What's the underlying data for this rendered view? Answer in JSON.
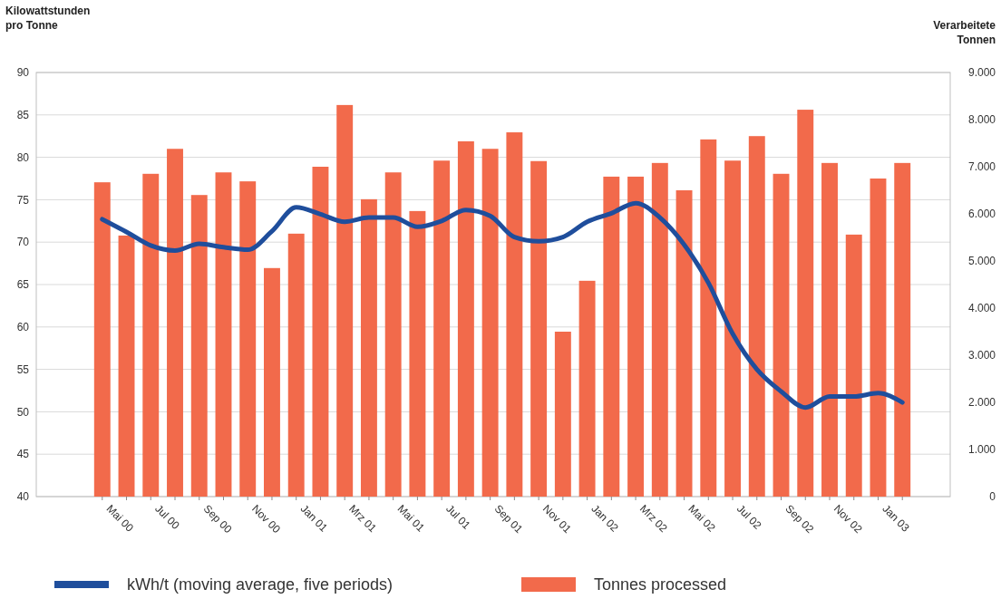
{
  "chart_data": {
    "type": "bar",
    "ylabel": "Kilowattstunden pro Tonne",
    "y2label": "Verarbeitete Tonnen",
    "categories": [
      "Mai 00",
      null,
      "Jul 00",
      null,
      "Sep 00",
      null,
      "Nov 00",
      null,
      "Jan 01",
      null,
      "Mrz 01",
      null,
      "Mai 01",
      null,
      "Jul 01",
      null,
      "Sep 01",
      null,
      "Nov 01",
      null,
      "Jan 02",
      null,
      "Mrz 02",
      null,
      "Mai 02",
      null,
      "Jul 02",
      null,
      "Sep 02",
      null,
      "Nov 02",
      null,
      "Jan 03",
      null
    ],
    "series": [
      {
        "name": "Tonnes processed",
        "axis": "y2",
        "color": "#f26a4b",
        "values": [
          6670,
          5540,
          6850,
          7380,
          6400,
          6880,
          6690,
          4850,
          5580,
          7000,
          8310,
          6310,
          6880,
          6060,
          7130,
          7540,
          7380,
          7730,
          7120,
          3500,
          4580,
          6790,
          6790,
          7080,
          6500,
          7580,
          7130,
          7650,
          6850,
          8210,
          7080,
          5560,
          6750,
          7080
        ]
      },
      {
        "name": "kWh/t (moving average, five periods)",
        "type": "line",
        "color": "#1f4e9c",
        "values": [
          72.7,
          71.2,
          69.6,
          69.0,
          69.8,
          69.4,
          69.1,
          71.3,
          74.1,
          73.3,
          72.4,
          72.9,
          72.9,
          71.8,
          72.5,
          73.8,
          73.1,
          70.6,
          70.1,
          70.6,
          72.4,
          73.4,
          74.6,
          72.9,
          69.7,
          65.2,
          59.2,
          55.0,
          52.4,
          50.5,
          51.8,
          51.8,
          52.2,
          51.1
        ]
      }
    ],
    "ylim": [
      40,
      90
    ],
    "yticks": [
      40,
      45,
      50,
      55,
      60,
      65,
      70,
      75,
      80,
      85,
      90
    ],
    "y2lim": [
      0,
      9000
    ],
    "y2ticks": [
      {
        "value": 0,
        "label": "0"
      },
      {
        "value": 1000,
        "label": "1.000"
      },
      {
        "value": 2000,
        "label": "2.000"
      },
      {
        "value": 3000,
        "label": "3.000"
      },
      {
        "value": 4000,
        "label": "4.000"
      },
      {
        "value": 5000,
        "label": "5.000"
      },
      {
        "value": 6000,
        "label": "6.000"
      },
      {
        "value": 7000,
        "label": "7.000"
      },
      {
        "value": 8000,
        "label": "8.000"
      },
      {
        "value": 9000,
        "label": "9.000"
      }
    ],
    "grid": "y",
    "legend": "bottom"
  }
}
